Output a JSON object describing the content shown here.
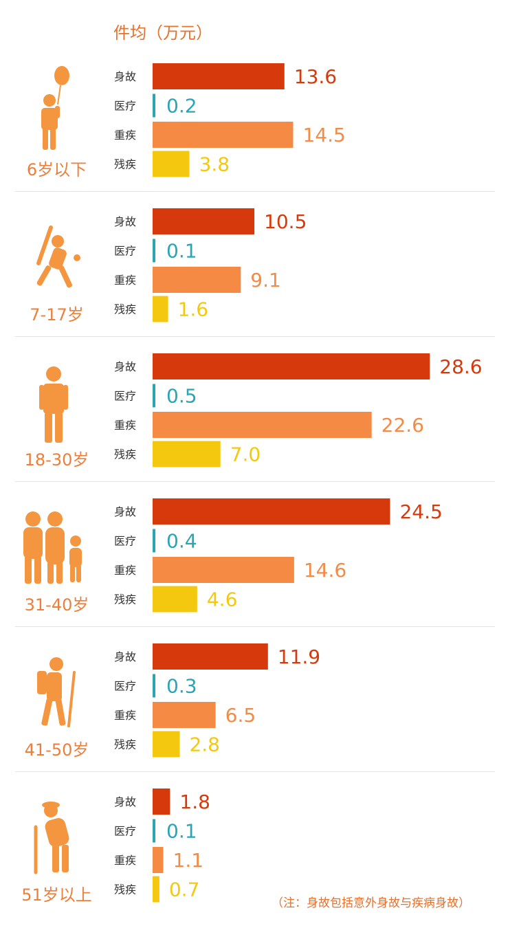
{
  "unit_title": "件均（万元）",
  "note": "（注：身故包括意外身故与疾病身故）",
  "colors": {
    "身故": "#d63a0c",
    "医疗": "#2aa5b5",
    "重疾": "#f58a45",
    "残疾": "#f5c810",
    "icon": "#f4953f"
  },
  "icons": [
    "balloon-child-icon",
    "baseball-player-icon",
    "businessman-icon",
    "family-icon",
    "hiker-icon",
    "elderly-cane-icon"
  ],
  "chart_data": {
    "type": "bar",
    "orientation": "horizontal",
    "categories": [
      "身故",
      "医疗",
      "重疾",
      "残疾"
    ],
    "groups": [
      {
        "label": "6岁以下",
        "values": [
          13.6,
          0.2,
          14.5,
          3.8
        ],
        "display": [
          "13.6",
          "0.2",
          "14.5",
          "3.8"
        ]
      },
      {
        "label": "7-17岁",
        "values": [
          10.5,
          0.1,
          9.1,
          1.6
        ],
        "display": [
          "10.5",
          "0.1",
          "9.1",
          "1.6"
        ]
      },
      {
        "label": "18-30岁",
        "values": [
          28.6,
          0.5,
          22.6,
          7.0
        ],
        "display": [
          "28.6",
          "0.5",
          "22.6",
          "7.0"
        ]
      },
      {
        "label": "31-40岁",
        "values": [
          24.5,
          0.4,
          14.6,
          4.6
        ],
        "display": [
          "24.5",
          "0.4",
          "14.6",
          "4.6"
        ]
      },
      {
        "label": "41-50岁",
        "values": [
          11.9,
          0.3,
          6.5,
          2.8
        ],
        "display": [
          "11.9",
          "0.3",
          "6.5",
          "2.8"
        ]
      },
      {
        "label": "51岁以上",
        "values": [
          1.8,
          0.1,
          1.1,
          0.7
        ],
        "display": [
          "1.8",
          "0.1",
          "1.1",
          "0.7"
        ]
      }
    ],
    "grid": false,
    "legend": "none"
  }
}
